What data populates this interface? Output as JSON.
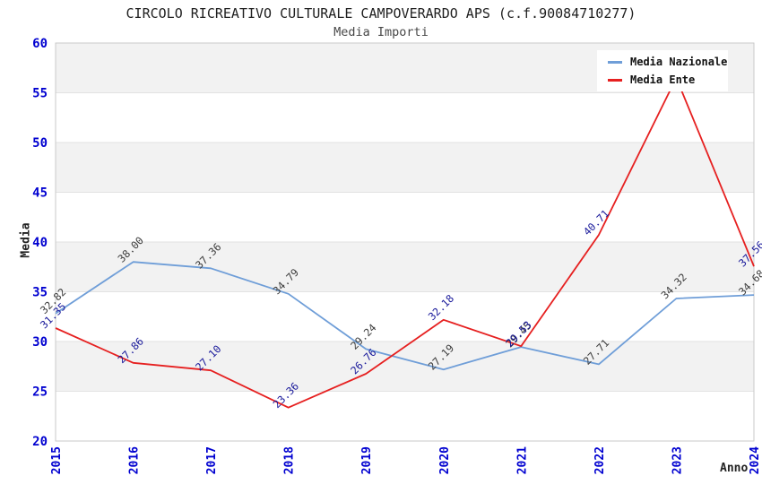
{
  "chart_data": {
    "type": "line",
    "title": "CIRCOLO RICREATIVO CULTURALE CAMPOVERARDO APS (c.f.90084710277)",
    "subtitle": "Media Importi",
    "xlabel": "Anno",
    "ylabel": "Media",
    "ylim": [
      20,
      60
    ],
    "ytick_step": 5,
    "yticks": [
      20,
      25,
      30,
      35,
      40,
      45,
      50,
      55,
      60
    ],
    "categories": [
      "2015",
      "2016",
      "2017",
      "2018",
      "2019",
      "2020",
      "2021",
      "2022",
      "2023",
      "2024"
    ],
    "series": [
      {
        "name": "Media Nazionale",
        "color": "#6f9ed8",
        "label_color": "#3c3c3c",
        "values": [
          32.82,
          38.0,
          37.36,
          34.79,
          29.24,
          27.19,
          29.45,
          27.71,
          34.32,
          34.68
        ]
      },
      {
        "name": "Media Ente",
        "color": "#e62020",
        "label_color": "#18189a",
        "values": [
          31.35,
          27.86,
          27.1,
          23.36,
          26.76,
          32.18,
          29.53,
          40.71,
          56.5,
          37.56
        ]
      }
    ],
    "legend_position": "top-right",
    "grid": true,
    "band_fill": "#f2f2f2",
    "grid_color": "#e2e2e2",
    "border_color": "#c9c9c9",
    "tick_color": "#0000d0",
    "label_format_decimals": 2
  }
}
